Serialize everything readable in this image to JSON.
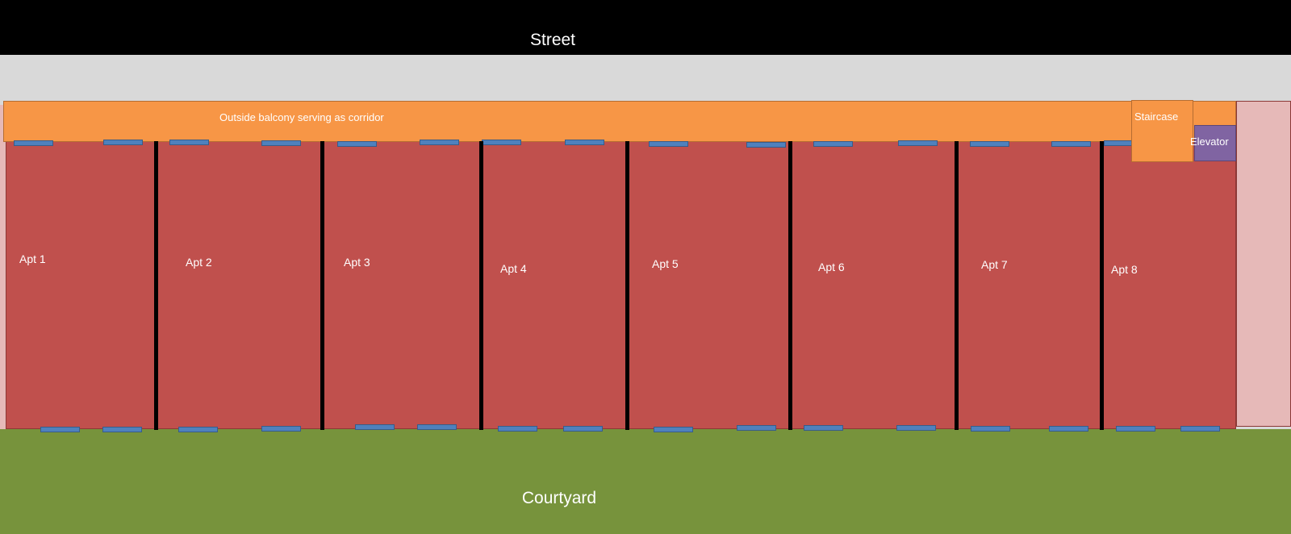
{
  "street": "Street",
  "courtyard": "Courtyard",
  "balcony": "Outside balcony serving as  corridor",
  "staircase": "Staircase",
  "elevator": "Elevator",
  "apartments": [
    "Apt 1",
    "Apt 2",
    "Apt 3",
    "Apt 4",
    "Apt 5",
    "Apt 6",
    "Apt 7",
    "Apt 8"
  ],
  "colors": {
    "street": "#000000",
    "apartment": "#c0504d",
    "balcony": "#f79646",
    "elevator": "#8064a2",
    "window": "#4f81bd",
    "courtyard": "#77933c"
  }
}
